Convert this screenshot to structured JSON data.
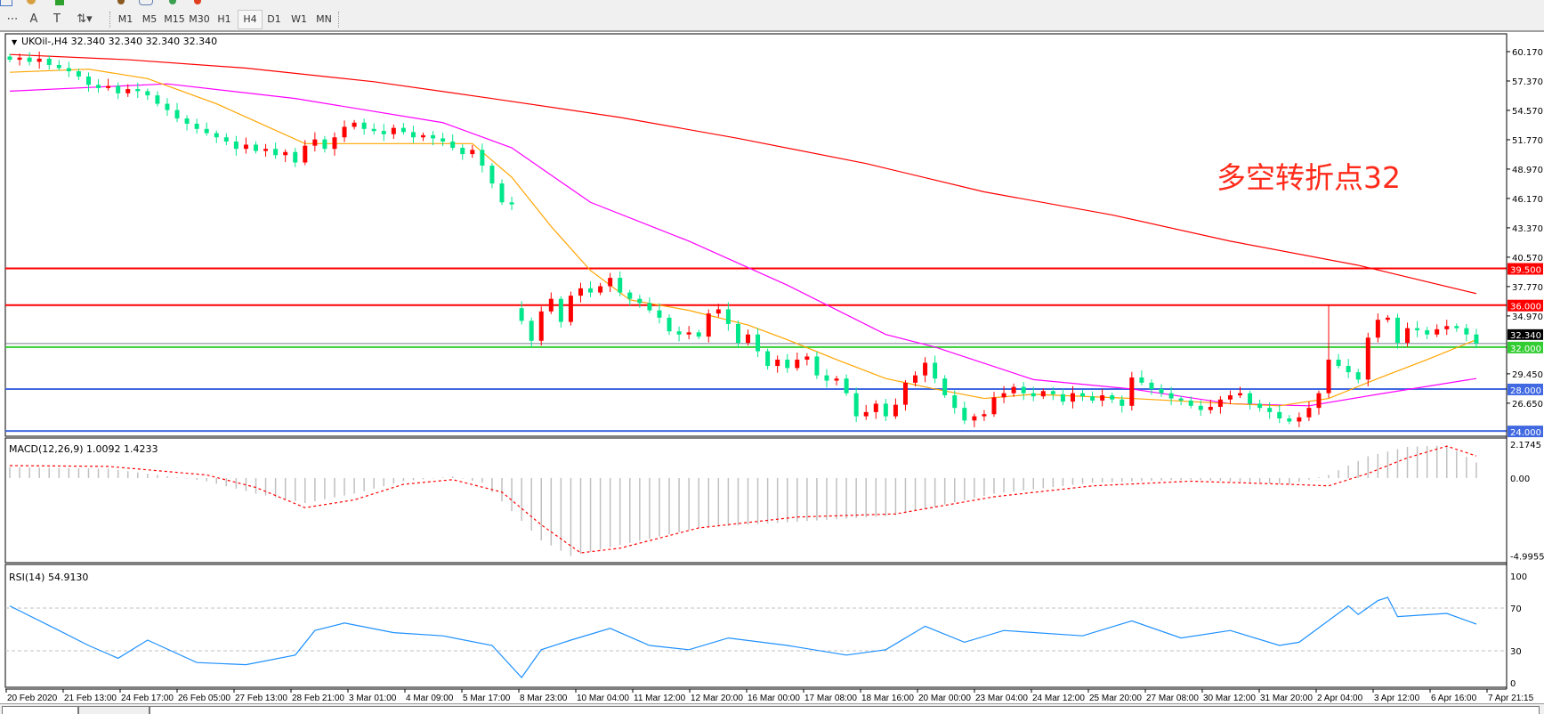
{
  "toolbar": {
    "timeframes": [
      "M1",
      "M5",
      "M15",
      "M30",
      "H1",
      "H4",
      "D1",
      "W1",
      "MN"
    ],
    "active_timeframe": "H4",
    "tools": [
      "grid-icon",
      "text-icon",
      "text-label-icon",
      "arrows-icon"
    ]
  },
  "chart": {
    "symbol_line": "UKOil-,H4  32.340 32.340 32.340 32.340",
    "annotation": "多空转折点32",
    "annotation_color": "#ff2a1a",
    "bull_color": "#ff0000",
    "bear_color": "#00e68a",
    "price_ticks": [
      "60.170",
      "57.370",
      "54.570",
      "51.770",
      "48.970",
      "46.170",
      "43.370",
      "40.570",
      "37.770",
      "34.970",
      "29.450",
      "26.650"
    ],
    "price_tick_values": [
      60.17,
      57.37,
      54.57,
      51.77,
      48.97,
      46.17,
      43.37,
      40.57,
      37.77,
      34.97,
      29.45,
      26.65
    ],
    "current_price": {
      "value": 32.34,
      "label": "32.340",
      "color": "#708090"
    },
    "levels": [
      {
        "value": 39.5,
        "label": "39.500",
        "color": "#ff0000"
      },
      {
        "value": 36.0,
        "label": "36.000",
        "color": "#ff0000"
      },
      {
        "value": 32.0,
        "label": "32.000",
        "color": "#32cd32"
      },
      {
        "value": 28.0,
        "label": "28.000",
        "color": "#4169e1"
      },
      {
        "value": 24.0,
        "label": "24.000",
        "color": "#4169e1"
      }
    ],
    "time_labels": [
      "20 Feb 2020",
      "21 Feb 13:00",
      "24 Feb 17:00",
      "26 Feb 05:00",
      "27 Feb 13:00",
      "28 Feb 21:00",
      "3 Mar 01:00",
      "4 Mar 09:00",
      "5 Mar 17:00",
      "8 Mar 23:00",
      "10 Mar 04:00",
      "11 Mar 12:00",
      "12 Mar 20:00",
      "16 Mar 00:00",
      "17 Mar 08:00",
      "18 Mar 16:00",
      "20 Mar 00:00",
      "23 Mar 04:00",
      "24 Mar 12:00",
      "25 Mar 20:00",
      "27 Mar 08:00",
      "30 Mar 12:00",
      "31 Mar 20:00",
      "2 Apr 04:00",
      "3 Apr 12:00",
      "6 Apr 16:00",
      "7 Apr 21:15"
    ]
  },
  "chart_data": {
    "type": "candlestick",
    "closes": [
      59.4,
      59.6,
      59.2,
      59.5,
      58.9,
      58.6,
      58.3,
      57.8,
      57.0,
      56.7,
      56.9,
      56.2,
      56.6,
      56.4,
      56.0,
      55.2,
      54.6,
      53.8,
      53.3,
      52.8,
      52.4,
      52.0,
      51.6,
      50.9,
      51.3,
      50.7,
      50.9,
      50.3,
      50.6,
      49.6,
      51.2,
      51.8,
      50.9,
      52.0,
      53.0,
      53.4,
      52.8,
      52.6,
      52.3,
      52.9,
      52.5,
      52.0,
      52.2,
      51.9,
      51.6,
      51.0,
      50.4,
      50.8,
      49.3,
      47.6,
      45.8,
      45.6,
      34.5,
      32.6,
      35.4,
      36.6,
      34.4,
      36.9,
      37.6,
      37.2,
      37.8,
      38.6,
      37.2,
      36.6,
      36.2,
      35.5,
      34.8,
      33.5,
      33.2,
      33.4,
      33.0,
      35.2,
      35.6,
      34.2,
      32.4,
      33.2,
      31.6,
      30.2,
      30.8,
      30.0,
      30.8,
      31.1,
      29.3,
      28.8,
      29.0,
      27.6,
      25.4,
      25.8,
      26.6,
      25.4,
      26.5,
      28.6,
      29.3,
      30.5,
      29.0,
      27.4,
      26.2,
      25.0,
      25.4,
      25.6,
      27.2,
      27.6,
      28.2,
      27.6,
      27.3,
      27.8,
      27.5,
      26.8,
      27.6,
      27.3,
      26.9,
      27.4,
      27.0,
      26.4,
      29.1,
      28.6,
      28.0,
      27.6,
      27.1,
      26.9,
      26.4,
      26.0,
      26.3,
      27.0,
      27.4,
      27.6,
      26.6,
      26.2,
      25.8,
      25.2,
      24.9,
      25.3,
      26.2,
      27.6,
      30.8,
      30.2,
      29.6,
      28.9,
      32.9,
      34.6,
      34.8,
      32.4,
      33.8,
      33.6,
      33.2,
      33.7,
      34.0,
      33.8,
      33.2,
      32.34
    ],
    "spike_high": {
      "index": 134,
      "value": 36.0
    },
    "moving_averages": [
      {
        "color": "#ff0000",
        "points": [
          [
            0,
            59.9
          ],
          [
            12,
            59.4
          ],
          [
            24,
            58.6
          ],
          [
            37,
            57.3
          ],
          [
            49,
            55.7
          ],
          [
            62,
            53.9
          ],
          [
            74,
            51.9
          ],
          [
            87,
            49.5
          ],
          [
            99,
            46.8
          ],
          [
            112,
            44.6
          ],
          [
            124,
            42.1
          ],
          [
            137,
            39.8
          ],
          [
            149,
            37.1
          ]
        ]
      },
      {
        "color": "#ff00ff",
        "points": [
          [
            0,
            56.4
          ],
          [
            16,
            57.1
          ],
          [
            29,
            55.7
          ],
          [
            44,
            53.4
          ],
          [
            51,
            51.0
          ],
          [
            59,
            45.8
          ],
          [
            69,
            42.1
          ],
          [
            79,
            37.9
          ],
          [
            89,
            33.2
          ],
          [
            94,
            32.0
          ],
          [
            104,
            28.9
          ],
          [
            114,
            28.0
          ],
          [
            124,
            26.6
          ],
          [
            132,
            26.4
          ],
          [
            139,
            27.5
          ],
          [
            149,
            29.0
          ]
        ]
      },
      {
        "color": "#ffa500",
        "points": [
          [
            0,
            58.2
          ],
          [
            8,
            58.5
          ],
          [
            14,
            57.6
          ],
          [
            21,
            55.2
          ],
          [
            30,
            51.4
          ],
          [
            43,
            51.4
          ],
          [
            47,
            51.4
          ],
          [
            51,
            48.2
          ],
          [
            55,
            43.5
          ],
          [
            59,
            39.3
          ],
          [
            63,
            36.5
          ],
          [
            69,
            35.5
          ],
          [
            75,
            34.1
          ],
          [
            79,
            32.7
          ],
          [
            84,
            30.8
          ],
          [
            89,
            29.0
          ],
          [
            94,
            28.0
          ],
          [
            99,
            27.1
          ],
          [
            104,
            27.5
          ],
          [
            114,
            27.1
          ],
          [
            124,
            26.6
          ],
          [
            129,
            26.4
          ],
          [
            134,
            27.1
          ],
          [
            139,
            29.0
          ],
          [
            144,
            30.8
          ],
          [
            149,
            32.7
          ]
        ]
      }
    ],
    "macd": {
      "label": "MACD(12,26,9) 1.0092 1.4233",
      "ticks": [
        "2.1745",
        "0.00",
        "-4.9955"
      ],
      "tick_values": [
        2.1745,
        0,
        -4.9955
      ],
      "histogram_color": "#c0c0c0",
      "signal_color": "#ff0000",
      "histogram": [
        [
          0,
          0.7
        ],
        [
          10,
          0.6
        ],
        [
          20,
          -0.2
        ],
        [
          25,
          -1.0
        ],
        [
          30,
          -1.6
        ],
        [
          35,
          -1.0
        ],
        [
          40,
          -0.2
        ],
        [
          45,
          0.1
        ],
        [
          48,
          -0.3
        ],
        [
          50,
          -1.5
        ],
        [
          54,
          -4.0
        ],
        [
          57,
          -5.0
        ],
        [
          62,
          -4.3
        ],
        [
          70,
          -3.2
        ],
        [
          80,
          -2.8
        ],
        [
          90,
          -2.4
        ],
        [
          100,
          -1.0
        ],
        [
          110,
          -0.3
        ],
        [
          120,
          -0.1
        ],
        [
          130,
          -0.4
        ],
        [
          134,
          0.2
        ],
        [
          138,
          1.4
        ],
        [
          142,
          2.0
        ],
        [
          146,
          2.1
        ],
        [
          149,
          1.0
        ]
      ],
      "signal": [
        [
          0,
          0.8
        ],
        [
          10,
          0.75
        ],
        [
          20,
          0.2
        ],
        [
          25,
          -0.6
        ],
        [
          30,
          -1.9
        ],
        [
          35,
          -1.4
        ],
        [
          40,
          -0.4
        ],
        [
          45,
          -0.1
        ],
        [
          50,
          -0.9
        ],
        [
          54,
          -3.0
        ],
        [
          58,
          -4.8
        ],
        [
          62,
          -4.5
        ],
        [
          70,
          -3.2
        ],
        [
          80,
          -2.5
        ],
        [
          90,
          -2.3
        ],
        [
          100,
          -1.2
        ],
        [
          110,
          -0.5
        ],
        [
          120,
          -0.2
        ],
        [
          130,
          -0.4
        ],
        [
          134,
          -0.5
        ],
        [
          138,
          0.3
        ],
        [
          142,
          1.3
        ],
        [
          146,
          2.05
        ],
        [
          149,
          1.42
        ]
      ]
    },
    "rsi": {
      "label": "RSI(14) 54.9130",
      "ticks": [
        "100",
        "70",
        "30",
        "0"
      ],
      "tick_values": [
        100,
        70,
        30,
        0
      ],
      "levels": [
        70,
        30
      ],
      "color": "#1e90ff",
      "points": [
        [
          0,
          72
        ],
        [
          5,
          49
        ],
        [
          8,
          35
        ],
        [
          11,
          23
        ],
        [
          14,
          40
        ],
        [
          19,
          19
        ],
        [
          24,
          17
        ],
        [
          29,
          26
        ],
        [
          31,
          49
        ],
        [
          34,
          56
        ],
        [
          39,
          47
        ],
        [
          44,
          44
        ],
        [
          49,
          35
        ],
        [
          52,
          5
        ],
        [
          54,
          31
        ],
        [
          57,
          40
        ],
        [
          61,
          51
        ],
        [
          65,
          35
        ],
        [
          69,
          31
        ],
        [
          73,
          42
        ],
        [
          79,
          35
        ],
        [
          85,
          26
        ],
        [
          89,
          31
        ],
        [
          93,
          53
        ],
        [
          97,
          38
        ],
        [
          101,
          49
        ],
        [
          109,
          44
        ],
        [
          114,
          58
        ],
        [
          119,
          42
        ],
        [
          124,
          49
        ],
        [
          129,
          35
        ],
        [
          131,
          38
        ],
        [
          136,
          72
        ],
        [
          137,
          64
        ],
        [
          139,
          77
        ],
        [
          140,
          80
        ],
        [
          141,
          62
        ],
        [
          146,
          65
        ],
        [
          149,
          55
        ]
      ]
    }
  }
}
